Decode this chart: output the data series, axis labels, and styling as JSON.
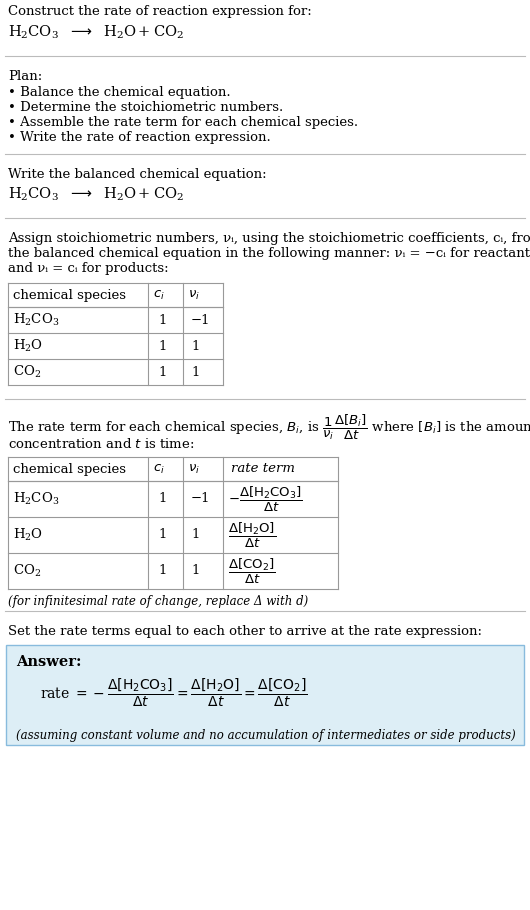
{
  "bg_color": "#ffffff",
  "text_color": "#000000",
  "answer_bg": "#ddeef6",
  "answer_border": "#88bbdd",
  "section1_title": "Construct the rate of reaction expression for:",
  "plan_title": "Plan:",
  "plan_items": [
    "• Balance the chemical equation.",
    "• Determine the stoichiometric numbers.",
    "• Assemble the rate term for each chemical species.",
    "• Write the rate of reaction expression."
  ],
  "balanced_title": "Write the balanced chemical equation:",
  "stoich_intro_lines": [
    "Assign stoichiometric numbers, νᵢ, using the stoichiometric coefficients, cᵢ, from",
    "the balanced chemical equation in the following manner: νᵢ = −cᵢ for reactants",
    "and νᵢ = cᵢ for products:"
  ],
  "table1_headers": [
    "chemical species",
    "cᵢ",
    "νᵢ"
  ],
  "table1_rows": [
    [
      "H₂CO₃",
      "1",
      "−1"
    ],
    [
      "H₂O",
      "1",
      "1"
    ],
    [
      "CO₂",
      "1",
      "1"
    ]
  ],
  "table2_headers": [
    "chemical species",
    "cᵢ",
    "νᵢ",
    "rate term"
  ],
  "table2_rows": [
    [
      "H₂CO₃",
      "1",
      "−1"
    ],
    [
      "H₂O",
      "1",
      "1"
    ],
    [
      "CO₂",
      "1",
      "1"
    ]
  ],
  "infinitesimal_note": "(for infinitesimal rate of change, replace Δ with d)",
  "set_equal_text": "Set the rate terms equal to each other to arrive at the rate expression:",
  "answer_label": "Answer:",
  "answer_note": "(assuming constant volume and no accumulation of intermediates or side products)"
}
